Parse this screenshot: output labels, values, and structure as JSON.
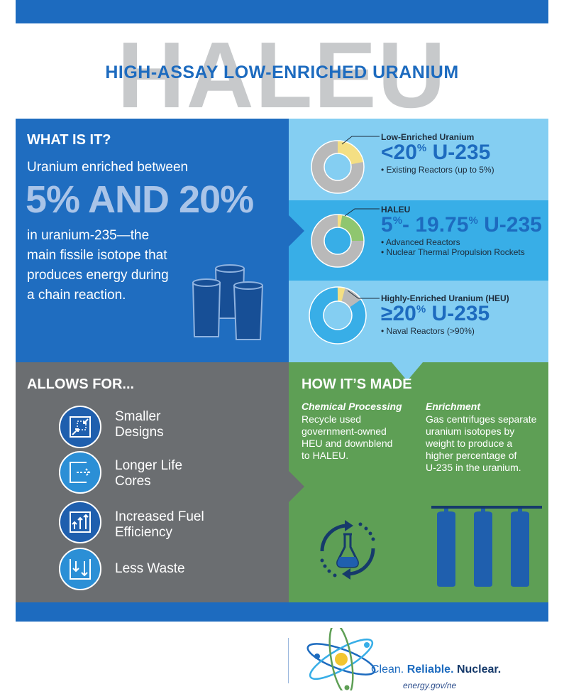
{
  "header": {
    "watermark": "HALEU",
    "title": "HIGH-ASSAY LOW-ENRICHED URANIUM"
  },
  "what": {
    "heading": "WHAT IS IT?",
    "line1": "Uranium enriched between",
    "range": "5% AND 20%",
    "lines": [
      "in uranium-235—the",
      "main fissile isotope that",
      "produces energy during",
      "a chain reaction."
    ]
  },
  "types": [
    {
      "title": "Low-Enriched Uranium",
      "prefix": "<",
      "value": "20",
      "unit": "%",
      "isotope": "U-235",
      "bullets": [
        "• Existing Reactors (up to 5%)"
      ]
    },
    {
      "title": "HALEU",
      "prefix": "",
      "value": "5",
      "unit": "%",
      "sep": "- 19.75",
      "unit2": "%",
      "isotope": "U-235",
      "bullets": [
        "• Advanced Reactors",
        "• Nuclear Thermal Propulsion Rockets"
      ]
    },
    {
      "title": "Highly-Enriched Uranium (HEU)",
      "prefix": "≥",
      "value": "20",
      "unit": "%",
      "isotope": "U-235",
      "bullets": [
        "• Naval Reactors (>90%)"
      ]
    }
  ],
  "allows": {
    "heading": "ALLOWS FOR...",
    "items": [
      {
        "line1": "Smaller",
        "line2": "Designs",
        "icon": "shrink-icon"
      },
      {
        "line1": "Longer Life",
        "line2": "Cores",
        "icon": "extend-arrow-icon"
      },
      {
        "line1": "Increased Fuel",
        "line2": "Efficiency",
        "icon": "rising-arrows-icon"
      },
      {
        "line1": "Less Waste",
        "line2": "",
        "icon": "down-arrows-icon"
      }
    ]
  },
  "made": {
    "heading": "HOW IT’S MADE",
    "chem_title": "Chemical Processing",
    "chem_lines": [
      "Recycle used",
      "government-owned",
      "HEU and downblend",
      "to HALEU."
    ],
    "enr_title": "Enrichment",
    "enr_lines": [
      "Gas centrifuges separate",
      "uranium isotopes by",
      "weight to produce  a",
      "higher percentage of",
      "U-235 in the uranium."
    ]
  },
  "footer": {
    "slogan_1": "Clean. ",
    "slogan_2": "Reliable. ",
    "slogan_3": "Nuclear.",
    "url": "energy.gov/ne"
  },
  "colors": {
    "blue_dark": "#1f6dc0",
    "blue_light": "#84cef2",
    "blue_mid": "#38aee7",
    "gray": "#6b6e71",
    "green": "#5e9f55",
    "yellow": "#f4df83",
    "ring_gray": "#b9b9b9"
  }
}
